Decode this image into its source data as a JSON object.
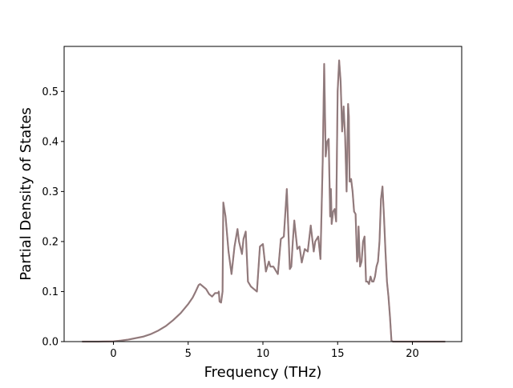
{
  "chart_data": {
    "type": "line",
    "title": "",
    "xlabel": "Frequency (THz)",
    "ylabel": "Partial Density of States",
    "xlim": [
      -3.3,
      23.3
    ],
    "ylim": [
      0.0,
      0.59
    ],
    "xticks": [
      0,
      5,
      10,
      15,
      20
    ],
    "xtick_labels": [
      "0",
      "5",
      "10",
      "15",
      "20"
    ],
    "yticks": [
      0.0,
      0.1,
      0.2,
      0.3,
      0.4,
      0.5
    ],
    "ytick_labels": [
      "0.0",
      "0.1",
      "0.2",
      "0.3",
      "0.4",
      "0.5"
    ],
    "grid": false,
    "legend": "none",
    "line_color": "#8c7b7d",
    "accent_color": "#d62728",
    "series": [
      {
        "x": [
          -2.1,
          -1.0,
          0.0,
          0.5,
          1.0,
          1.5,
          2.0,
          2.5,
          3.0,
          3.5,
          4.0,
          4.5,
          5.0,
          5.3,
          5.5,
          5.7,
          5.8,
          6.0,
          6.2,
          6.4,
          6.6,
          6.8,
          7.0,
          7.05,
          7.1,
          7.2,
          7.3,
          7.35,
          7.5,
          7.7,
          7.9,
          8.1,
          8.3,
          8.4,
          8.6,
          8.7,
          8.85,
          9.0,
          9.2,
          9.4,
          9.6,
          9.8,
          10.0,
          10.2,
          10.4,
          10.5,
          10.7,
          10.9,
          11.0,
          11.2,
          11.4,
          11.6,
          11.8,
          11.9,
          12.0,
          12.1,
          12.3,
          12.45,
          12.6,
          12.8,
          13.0,
          13.2,
          13.4,
          13.5,
          13.7,
          13.85,
          14.0,
          14.1,
          14.2,
          14.3,
          14.4,
          14.5,
          14.55,
          14.6,
          14.7,
          14.8,
          14.9,
          15.0,
          15.1,
          15.2,
          15.3,
          15.4,
          15.5,
          15.6,
          15.7,
          15.75,
          15.8,
          15.85,
          15.9,
          16.0,
          16.1,
          16.2,
          16.3,
          16.35,
          16.4,
          16.5,
          16.6,
          16.7,
          16.8,
          16.9,
          17.0,
          17.1,
          17.2,
          17.3,
          17.4,
          17.5,
          17.6,
          17.7,
          17.8,
          17.9,
          18.0,
          18.1,
          18.2,
          18.3,
          18.4,
          18.5,
          18.6,
          18.7,
          18.8,
          19.0,
          19.2,
          19.4,
          19.5,
          19.6,
          19.7,
          19.8,
          20.0,
          20.1,
          20.5,
          21.0,
          22.2
        ],
        "y": [
          0.0,
          0.0,
          0.0005,
          0.002,
          0.004,
          0.007,
          0.01,
          0.015,
          0.022,
          0.031,
          0.043,
          0.057,
          0.075,
          0.088,
          0.1,
          0.113,
          0.115,
          0.11,
          0.105,
          0.095,
          0.09,
          0.097,
          0.097,
          0.1,
          0.08,
          0.078,
          0.1,
          0.278,
          0.25,
          0.18,
          0.135,
          0.19,
          0.225,
          0.2,
          0.175,
          0.205,
          0.22,
          0.12,
          0.11,
          0.105,
          0.1,
          0.19,
          0.195,
          0.14,
          0.16,
          0.15,
          0.15,
          0.14,
          0.135,
          0.205,
          0.21,
          0.305,
          0.145,
          0.15,
          0.2,
          0.242,
          0.185,
          0.19,
          0.158,
          0.185,
          0.18,
          0.232,
          0.18,
          0.2,
          0.21,
          0.165,
          0.36,
          0.555,
          0.37,
          0.4,
          0.405,
          0.25,
          0.305,
          0.235,
          0.26,
          0.265,
          0.24,
          0.5,
          0.562,
          0.52,
          0.42,
          0.47,
          0.41,
          0.3,
          0.475,
          0.45,
          0.32,
          0.32,
          0.325,
          0.3,
          0.26,
          0.255,
          0.16,
          0.17,
          0.23,
          0.15,
          0.16,
          0.2,
          0.21,
          0.12,
          0.12,
          0.115,
          0.13,
          0.12,
          0.12,
          0.13,
          0.15,
          0.16,
          0.2,
          0.285,
          0.31,
          0.25,
          0.18,
          0.12,
          0.09,
          0.05,
          0.002,
          0.0,
          0.0,
          0.0,
          0.0,
          0.0,
          0.0,
          0.0,
          0.0,
          0.0,
          0.0,
          0.0,
          0.0,
          0.0,
          0.0
        ]
      }
    ]
  }
}
